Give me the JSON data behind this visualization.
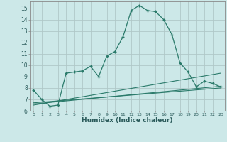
{
  "xlabel": "Humidex (Indice chaleur)",
  "background_color": "#cce8e8",
  "grid_color": "#b0c8c8",
  "line_color": "#2a7a6a",
  "xlim": [
    -0.5,
    23.5
  ],
  "ylim": [
    6,
    15.6
  ],
  "yticks": [
    6,
    7,
    8,
    9,
    10,
    11,
    12,
    13,
    14,
    15
  ],
  "xticks": [
    0,
    1,
    2,
    3,
    4,
    5,
    6,
    7,
    8,
    9,
    10,
    11,
    12,
    13,
    14,
    15,
    16,
    17,
    18,
    19,
    20,
    21,
    22,
    23
  ],
  "line1_x": [
    0,
    1,
    2,
    3,
    4,
    5,
    6,
    7,
    8,
    9,
    10,
    11,
    12,
    13,
    14,
    15,
    16,
    17,
    18,
    19,
    20,
    21,
    22,
    23
  ],
  "line1_y": [
    7.8,
    7.0,
    6.4,
    6.5,
    9.3,
    9.4,
    9.5,
    9.9,
    9.0,
    10.8,
    11.2,
    12.5,
    14.8,
    15.25,
    14.8,
    14.7,
    14.0,
    12.7,
    10.2,
    9.4,
    8.1,
    8.6,
    8.4,
    8.1
  ],
  "line2_x": [
    0,
    23
  ],
  "line2_y": [
    6.5,
    9.3
  ],
  "line3_x": [
    0,
    23
  ],
  "line3_y": [
    6.6,
    8.15
  ],
  "line4_x": [
    0,
    23
  ],
  "line4_y": [
    6.7,
    8.0
  ]
}
